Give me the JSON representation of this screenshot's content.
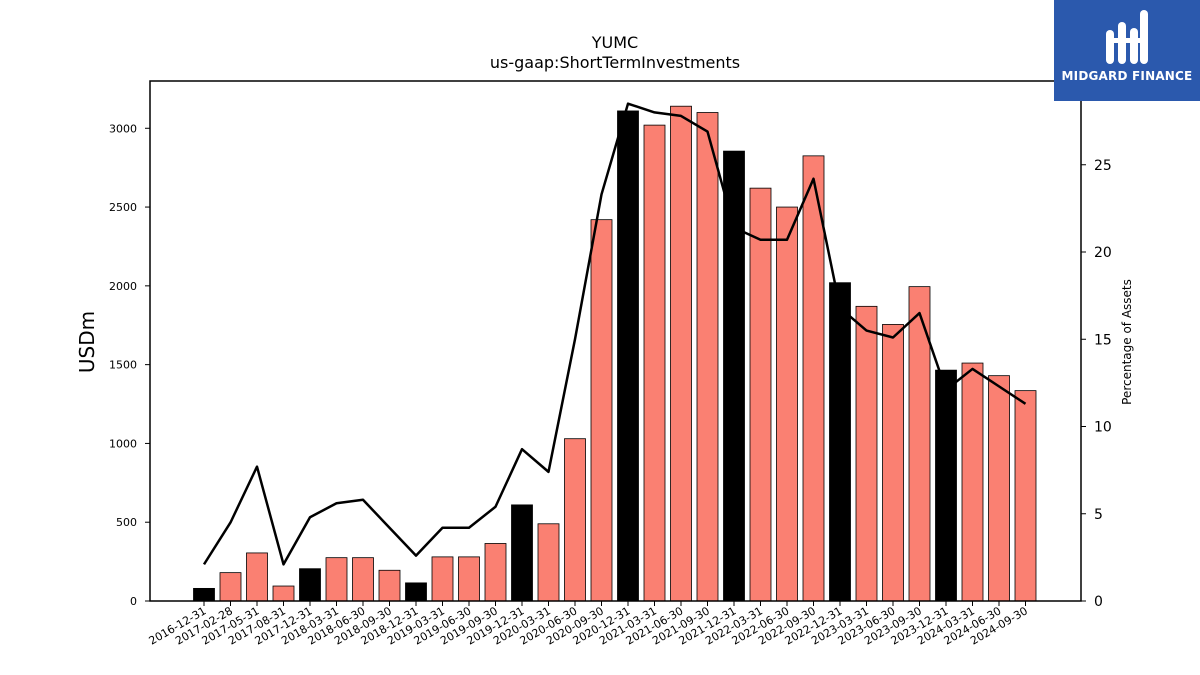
{
  "brand": {
    "name": "MIDGARD FINANCE",
    "bg": "#2b59ad"
  },
  "chart_data": {
    "type": "bar",
    "title": "YUMC",
    "subtitle": "us-gaap:ShortTermInvestments",
    "ylabel": "USDm",
    "y2label": "Percentage of Assets",
    "ylim": [
      0,
      3300
    ],
    "y2lim": [
      0,
      29.8
    ],
    "yticks": [
      0,
      500,
      1000,
      1500,
      2000,
      2500,
      3000
    ],
    "y2ticks": [
      0,
      5,
      10,
      15,
      20,
      25
    ],
    "colors": {
      "annual": "#000000",
      "quarterly": "#fa8072",
      "line": "#000000"
    },
    "categories": [
      "2016-12-31",
      "2017-02-28",
      "2017-05-31",
      "2017-08-31",
      "2017-12-31",
      "2018-03-31",
      "2018-06-30",
      "2018-09-30",
      "2018-12-31",
      "2019-03-31",
      "2019-06-30",
      "2019-09-30",
      "2019-12-31",
      "2020-03-31",
      "2020-06-30",
      "2020-09-30",
      "2020-12-31",
      "2021-03-31",
      "2021-06-30",
      "2021-09-30",
      "2021-12-31",
      "2022-03-31",
      "2022-06-30",
      "2022-09-30",
      "2022-12-31",
      "2023-03-31",
      "2023-06-30",
      "2023-09-30",
      "2023-12-31",
      "2024-03-31",
      "2024-06-30",
      "2024-09-30"
    ],
    "series": [
      {
        "values": [
          80,
          180,
          305,
          95,
          205,
          275,
          275,
          195,
          115,
          280,
          280,
          365,
          610,
          490,
          1030,
          2420,
          3110,
          3020,
          3140,
          3100,
          2855,
          2620,
          2500,
          2825,
          2020,
          1870,
          1755,
          1995,
          1465,
          1510,
          1430,
          1335
        ],
        "annual": [
          true,
          false,
          false,
          false,
          true,
          false,
          false,
          false,
          true,
          false,
          false,
          false,
          true,
          false,
          false,
          false,
          true,
          false,
          false,
          false,
          true,
          false,
          false,
          false,
          true,
          false,
          false,
          false,
          true,
          false,
          false,
          false
        ]
      },
      {
        "axis": "right",
        "values": [
          2.1,
          4.5,
          7.7,
          2.1,
          4.8,
          5.6,
          5.8,
          4.2,
          2.6,
          4.2,
          4.2,
          5.4,
          8.7,
          7.4,
          15.0,
          23.3,
          28.5,
          28.0,
          27.8,
          26.9,
          21.4,
          20.7,
          20.7,
          24.2,
          16.8,
          15.5,
          15.1,
          16.5,
          12.1,
          13.3,
          12.3,
          11.3
        ]
      }
    ]
  }
}
